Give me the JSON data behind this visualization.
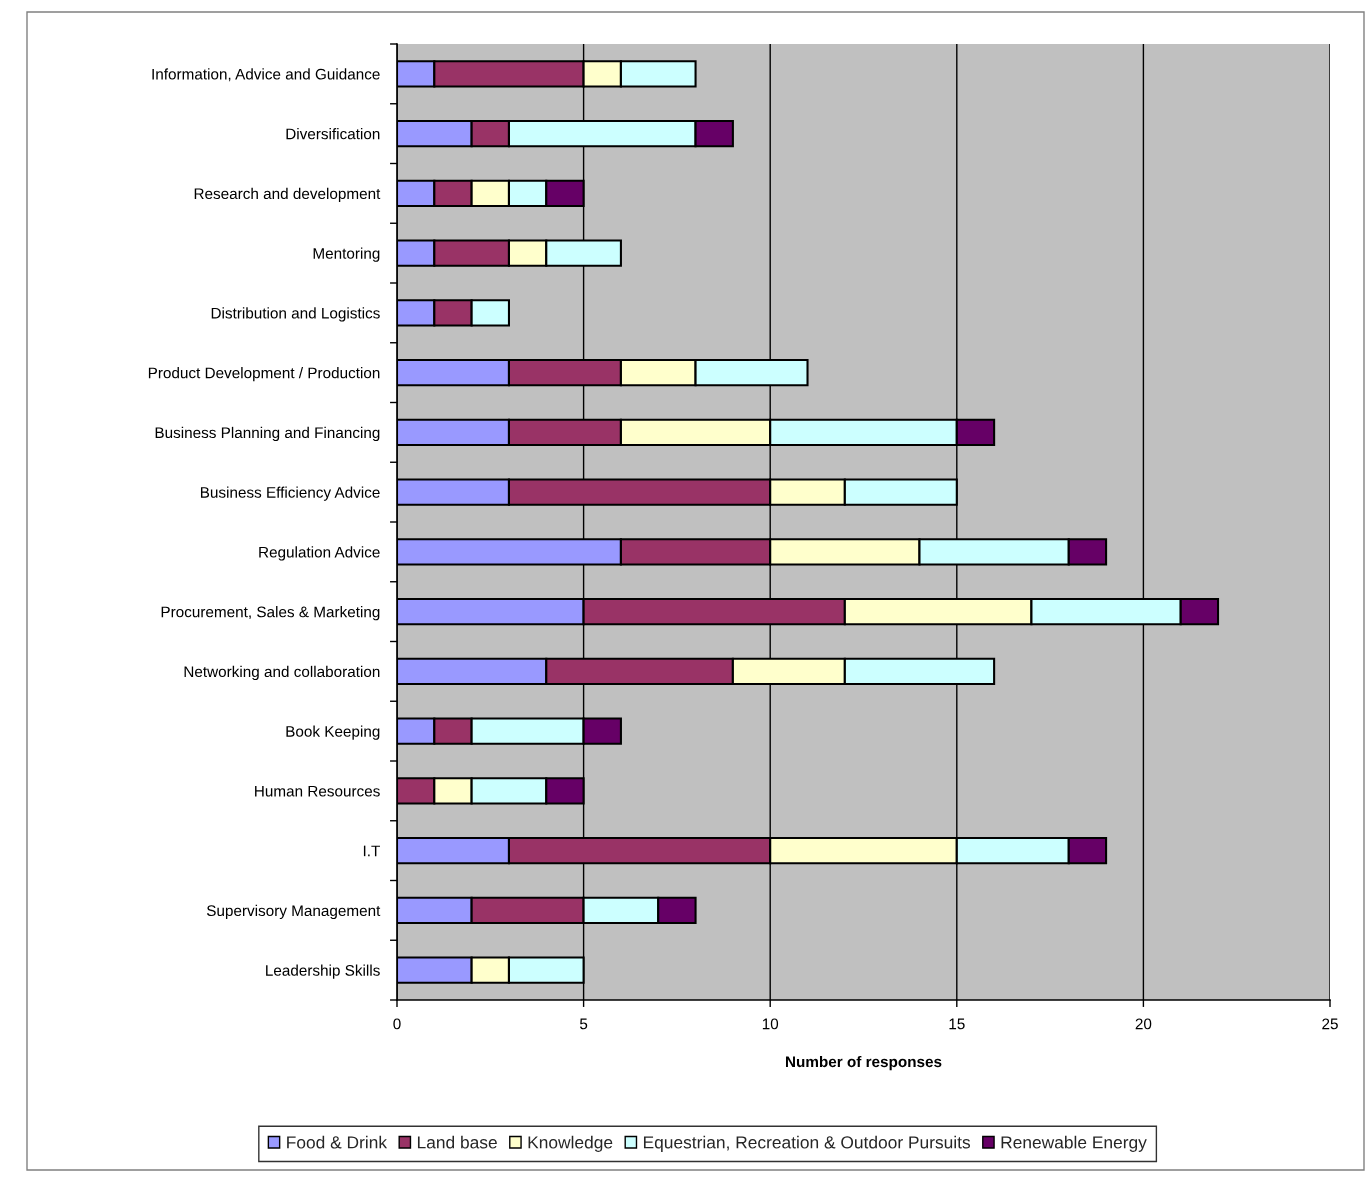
{
  "chart_data": {
    "type": "bar",
    "orientation": "horizontal",
    "stacked": true,
    "xlabel": "Number of responses",
    "categories": [
      "Information, Advice and Guidance",
      "Diversification",
      "Research and development",
      "Mentoring",
      "Distribution and Logistics",
      "Product Development / Production",
      "Business Planning and Financing",
      "Business Efficiency Advice",
      "Regulation Advice",
      "Procurement, Sales & Marketing",
      "Networking and collaboration",
      "Book Keeping",
      "Human Resources",
      "I.T",
      "Supervisory Management",
      "Leadership Skills"
    ],
    "series": [
      {
        "name": "Food & Drink",
        "color": "#9999ff",
        "values": [
          1,
          2,
          1,
          1,
          1,
          3,
          3,
          3,
          6,
          5,
          4,
          1,
          0,
          3,
          2,
          2
        ]
      },
      {
        "name": "Land base",
        "color": "#993366",
        "values": [
          4,
          1,
          1,
          2,
          1,
          3,
          3,
          7,
          4,
          7,
          5,
          1,
          1,
          7,
          3,
          0
        ]
      },
      {
        "name": "Knowledge",
        "color": "#ffffcc",
        "values": [
          1,
          0,
          1,
          1,
          0,
          2,
          4,
          2,
          4,
          5,
          3,
          0,
          1,
          5,
          0,
          1
        ]
      },
      {
        "name": "Equestrian, Recreation & Outdoor Pursuits",
        "color": "#ccffff",
        "values": [
          2,
          5,
          1,
          2,
          1,
          3,
          5,
          3,
          4,
          4,
          4,
          3,
          2,
          3,
          2,
          2
        ]
      },
      {
        "name": "Renewable Energy",
        "color": "#660066",
        "values": [
          0,
          1,
          1,
          0,
          0,
          0,
          1,
          0,
          1,
          1,
          0,
          1,
          1,
          1,
          1,
          0
        ]
      }
    ],
    "xlim": [
      0,
      25
    ],
    "xticks": [
      0,
      5,
      10,
      15,
      20,
      25
    ],
    "grid": "x",
    "legend": "bottom"
  }
}
